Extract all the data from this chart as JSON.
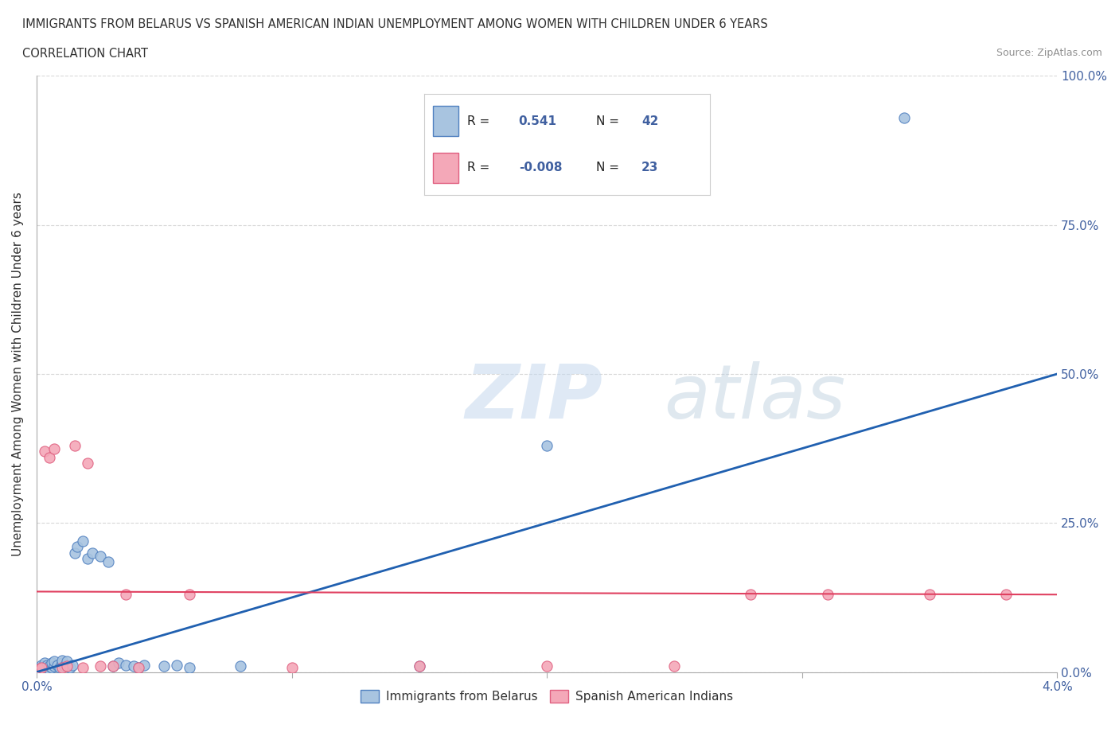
{
  "title_line1": "IMMIGRANTS FROM BELARUS VS SPANISH AMERICAN INDIAN UNEMPLOYMENT AMONG WOMEN WITH CHILDREN UNDER 6 YEARS",
  "title_line2": "CORRELATION CHART",
  "source": "Source: ZipAtlas.com",
  "ylabel": "Unemployment Among Women with Children Under 6 years",
  "xmin": 0.0,
  "xmax": 0.04,
  "ymin": 0.0,
  "ymax": 1.0,
  "ytick_vals": [
    0.0,
    0.25,
    0.5,
    0.75,
    1.0
  ],
  "ytick_labels": [
    "0.0%",
    "25.0%",
    "50.0%",
    "75.0%",
    "100.0%"
  ],
  "xtick_vals": [
    0.0,
    0.01,
    0.02,
    0.03,
    0.04
  ],
  "xtick_labels": [
    "0.0%",
    "",
    "",
    "",
    "4.0%"
  ],
  "watermark_zip": "ZIP",
  "watermark_atlas": "atlas",
  "blue_R": "0.541",
  "blue_N": "42",
  "pink_R": "-0.008",
  "pink_N": "23",
  "blue_fill": "#a8c4e0",
  "pink_fill": "#f4a8b8",
  "blue_edge": "#5080c0",
  "pink_edge": "#e06080",
  "blue_line": "#2060b0",
  "pink_line": "#e04060",
  "blue_scatter": [
    [
      0.0001,
      0.005
    ],
    [
      0.0002,
      0.008
    ],
    [
      0.0002,
      0.012
    ],
    [
      0.0003,
      0.005
    ],
    [
      0.0003,
      0.01
    ],
    [
      0.0003,
      0.015
    ],
    [
      0.0004,
      0.008
    ],
    [
      0.0004,
      0.012
    ],
    [
      0.0005,
      0.005
    ],
    [
      0.0005,
      0.01
    ],
    [
      0.0006,
      0.008
    ],
    [
      0.0006,
      0.015
    ],
    [
      0.0007,
      0.01
    ],
    [
      0.0007,
      0.018
    ],
    [
      0.0008,
      0.012
    ],
    [
      0.0009,
      0.008
    ],
    [
      0.001,
      0.015
    ],
    [
      0.001,
      0.02
    ],
    [
      0.0011,
      0.01
    ],
    [
      0.0012,
      0.018
    ],
    [
      0.0013,
      0.008
    ],
    [
      0.0014,
      0.012
    ],
    [
      0.0015,
      0.2
    ],
    [
      0.0016,
      0.21
    ],
    [
      0.0018,
      0.22
    ],
    [
      0.002,
      0.19
    ],
    [
      0.0022,
      0.2
    ],
    [
      0.0025,
      0.195
    ],
    [
      0.0028,
      0.185
    ],
    [
      0.003,
      0.01
    ],
    [
      0.0032,
      0.015
    ],
    [
      0.0035,
      0.012
    ],
    [
      0.0038,
      0.01
    ],
    [
      0.004,
      0.008
    ],
    [
      0.0042,
      0.012
    ],
    [
      0.005,
      0.01
    ],
    [
      0.0055,
      0.012
    ],
    [
      0.006,
      0.008
    ],
    [
      0.008,
      0.01
    ],
    [
      0.015,
      0.01
    ],
    [
      0.02,
      0.38
    ],
    [
      0.034,
      0.93
    ]
  ],
  "pink_scatter": [
    [
      0.0001,
      0.005
    ],
    [
      0.0002,
      0.008
    ],
    [
      0.0003,
      0.37
    ],
    [
      0.0005,
      0.36
    ],
    [
      0.0007,
      0.375
    ],
    [
      0.001,
      0.008
    ],
    [
      0.0012,
      0.01
    ],
    [
      0.0015,
      0.38
    ],
    [
      0.0018,
      0.008
    ],
    [
      0.002,
      0.35
    ],
    [
      0.0025,
      0.01
    ],
    [
      0.003,
      0.01
    ],
    [
      0.0035,
      0.13
    ],
    [
      0.004,
      0.008
    ],
    [
      0.006,
      0.13
    ],
    [
      0.01,
      0.008
    ],
    [
      0.015,
      0.01
    ],
    [
      0.02,
      0.01
    ],
    [
      0.025,
      0.01
    ],
    [
      0.028,
      0.13
    ],
    [
      0.031,
      0.13
    ],
    [
      0.035,
      0.13
    ],
    [
      0.038,
      0.13
    ]
  ],
  "background_color": "#ffffff",
  "grid_color": "#d8d8d8",
  "title_color": "#303030",
  "label_color": "#4060a0",
  "axis_color": "#aaaaaa"
}
